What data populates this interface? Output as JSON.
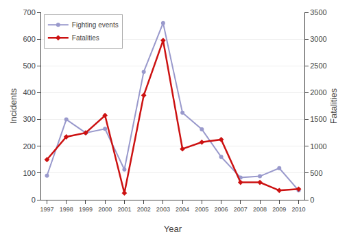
{
  "chart_data": {
    "type": "line",
    "xlabel": "Year",
    "ylabel": "Incidents",
    "y2label": "Fatalities",
    "x": [
      1997,
      1998,
      1999,
      2000,
      2001,
      2002,
      2003,
      2004,
      2005,
      2006,
      2007,
      2008,
      2009,
      2010
    ],
    "series": [
      {
        "name": "Fighting events",
        "color": "#9999cc",
        "marker": "circle",
        "values": [
          90,
          300,
          250,
          265,
          113,
          478,
          660,
          325,
          263,
          160,
          83,
          88,
          118,
          35
        ]
      },
      {
        "name": "Fatalities",
        "color": "#cc1111",
        "marker": "diamond",
        "axis": "y2",
        "values": [
          750,
          1175,
          1250,
          1575,
          125,
          1950,
          2975,
          950,
          1075,
          1125,
          325,
          325,
          175,
          200
        ]
      }
    ],
    "xlim": [
      1996.7,
      2010.3
    ],
    "xticks": [
      1997,
      1998,
      1999,
      2000,
      2001,
      2002,
      2003,
      2004,
      2005,
      2006,
      2007,
      2008,
      2009,
      2010
    ],
    "ylim": [
      0,
      700
    ],
    "yticks": [
      0,
      100,
      200,
      300,
      400,
      500,
      600,
      700
    ],
    "y2lim": [
      0,
      3500
    ],
    "y2ticks": [
      0,
      500,
      1000,
      1500,
      2000,
      2500,
      3000,
      3500
    ],
    "grid": "y",
    "legend": "upper left"
  }
}
